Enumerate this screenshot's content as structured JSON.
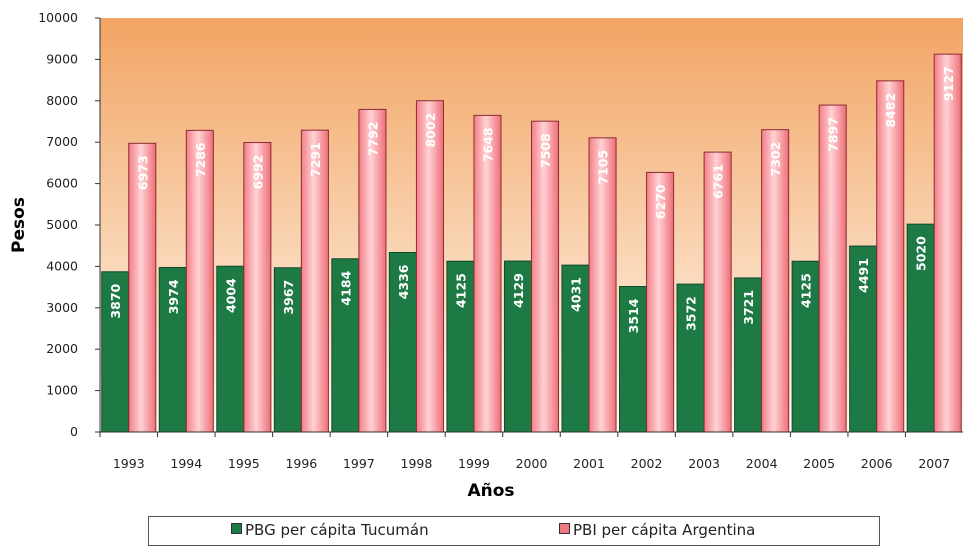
{
  "chart_data": {
    "type": "bar",
    "categories": [
      "1993",
      "1994",
      "1995",
      "1996",
      "1997",
      "1998",
      "1999",
      "2000",
      "2001",
      "2002",
      "2003",
      "2004",
      "2005",
      "2006",
      "2007"
    ],
    "series": [
      {
        "name": "PBG per cápita Tucumán",
        "values": [
          3870,
          3974,
          4004,
          3967,
          4184,
          4336,
          4125,
          4129,
          4031,
          3514,
          3572,
          3721,
          4125,
          4491,
          5020
        ],
        "labels": [
          "3870",
          "3974",
          "4004",
          "3967",
          "4184",
          "4336",
          "4125",
          "4129",
          "4031",
          "3514",
          "3572",
          "3721",
          "4125",
          "4491",
          "5020"
        ],
        "color": "#1e7a45"
      },
      {
        "name": "PBI per cápita Argentina",
        "values": [
          6973,
          7286,
          6992,
          7291,
          7792,
          8002,
          7648,
          7508,
          7105,
          6270,
          6761,
          7302,
          7897,
          8482,
          9127
        ],
        "labels": [
          "6973",
          "7286",
          "6992",
          "7291",
          "7792",
          "8002",
          "7648",
          "7508",
          "7105",
          "6270",
          "6761",
          "7302",
          "7897",
          "8482",
          "9127"
        ],
        "color": "#f07a82"
      }
    ],
    "xlabel": "Años",
    "ylabel": "Pesos",
    "ylim": [
      0,
      10000
    ],
    "yticks": [
      "0",
      "1000",
      "2000",
      "3000",
      "4000",
      "5000",
      "6000",
      "7000",
      "8000",
      "9000",
      "10000"
    ],
    "plot_background": {
      "top": "#f2a463",
      "bottom": "#fffaf2"
    },
    "grid": false,
    "legend_position": "bottom"
  }
}
